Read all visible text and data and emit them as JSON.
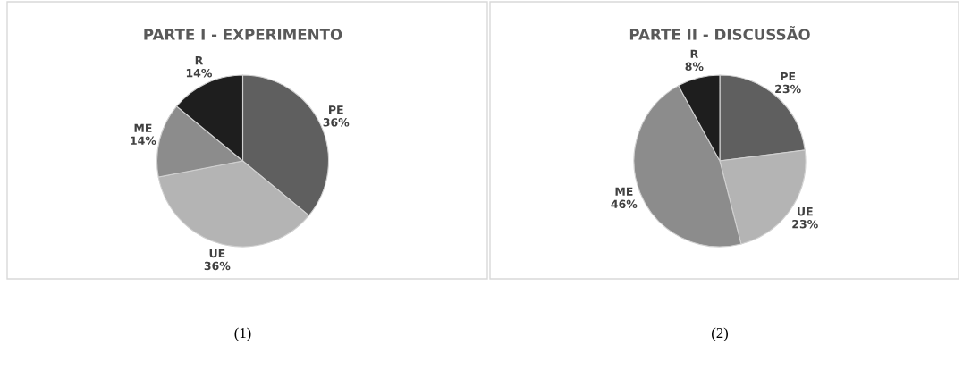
{
  "chart_data": [
    {
      "type": "pie",
      "title": "PARTE I - EXPERIMENTO",
      "categories": [
        "PE",
        "UE",
        "ME",
        "R"
      ],
      "values": [
        36,
        36,
        14,
        14
      ],
      "value_labels": [
        "36%",
        "36%",
        "14%",
        "14%"
      ],
      "colors": [
        "#5f5f5f",
        "#b4b4b4",
        "#8c8c8c",
        "#1e1e1e"
      ],
      "annotations": [
        "(1)"
      ]
    },
    {
      "type": "pie",
      "title": "PARTE II - DISCUSSÃO",
      "categories": [
        "PE",
        "UE",
        "ME",
        "R"
      ],
      "values": [
        23,
        23,
        46,
        8
      ],
      "value_labels": [
        "23%",
        "23%",
        "46%",
        "8%"
      ],
      "colors": [
        "#5f5f5f",
        "#b4b4b4",
        "#8c8c8c",
        "#1e1e1e"
      ],
      "annotations": [
        "(2)"
      ]
    }
  ]
}
